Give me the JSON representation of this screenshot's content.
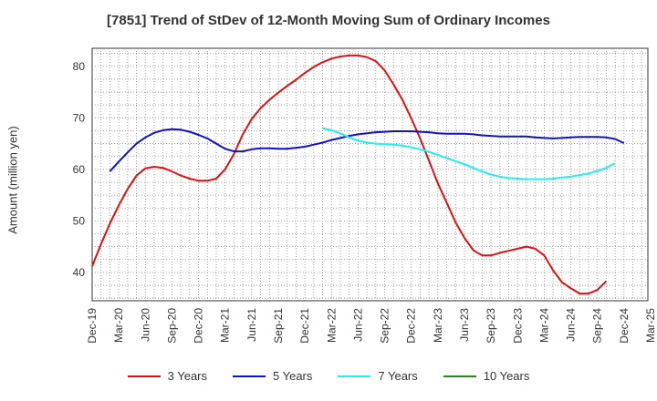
{
  "chart_data": {
    "type": "line",
    "title": "[7851]  Trend of StDev of 12-Month Moving Sum of Ordinary Incomes",
    "xlabel": "",
    "ylabel": "Amount (million yen)",
    "x_tick_labels": [
      "Dec-19",
      "Mar-20",
      "Jun-20",
      "Sep-20",
      "Dec-20",
      "Mar-21",
      "Jun-21",
      "Sep-21",
      "Dec-21",
      "Mar-22",
      "Jun-22",
      "Sep-22",
      "Dec-22",
      "Mar-23",
      "Jun-23",
      "Sep-23",
      "Dec-23",
      "Mar-24",
      "Jun-24",
      "Sep-24",
      "Dec-24",
      "Mar-25"
    ],
    "y_ticks": [
      40,
      50,
      60,
      70,
      80
    ],
    "ylim": [
      34.5,
      83.5
    ],
    "grid": true,
    "legend_position": "bottom",
    "series": [
      {
        "name": "3 Years",
        "color": "#dd1111",
        "start_month_index": 0,
        "values": [
          41.2,
          45.5,
          49.5,
          53.0,
          56.2,
          58.8,
          60.2,
          60.5,
          60.3,
          59.6,
          58.8,
          58.2,
          57.8,
          57.8,
          58.2,
          60.0,
          63.0,
          66.8,
          69.8,
          71.9,
          73.5,
          74.9,
          76.2,
          77.4,
          78.7,
          79.9,
          80.8,
          81.5,
          81.9,
          82.1,
          82.1,
          81.8,
          81.0,
          79.2,
          76.5,
          73.5,
          69.9,
          66.0,
          61.7,
          57.3,
          53.5,
          49.7,
          46.7,
          44.3,
          43.3,
          43.3,
          43.8,
          44.2,
          44.6,
          45.0,
          44.6,
          43.3,
          40.4,
          38.1,
          36.9,
          35.9,
          35.9,
          36.6,
          38.3
        ]
      },
      {
        "name": "5 Years",
        "color": "#1111cc",
        "start_month_index": 2,
        "values": [
          59.6,
          61.5,
          63.3,
          65.0,
          66.2,
          67.1,
          67.6,
          67.8,
          67.7,
          67.3,
          66.7,
          66.0,
          65.0,
          64.0,
          63.5,
          63.5,
          63.9,
          64.1,
          64.1,
          64.0,
          64.0,
          64.2,
          64.4,
          64.8,
          65.2,
          65.7,
          66.1,
          66.5,
          66.8,
          67.0,
          67.2,
          67.3,
          67.4,
          67.4,
          67.4,
          67.3,
          67.2,
          67.0,
          66.9,
          66.9,
          66.9,
          66.8,
          66.6,
          66.5,
          66.4,
          66.4,
          66.4,
          66.4,
          66.2,
          66.1,
          66.0,
          66.1,
          66.2,
          66.3,
          66.3,
          66.3,
          66.2,
          65.9,
          65.1
        ]
      },
      {
        "name": "7 Years",
        "color": "#22eeee",
        "start_month_index": 26,
        "values": [
          68.0,
          67.6,
          67.0,
          66.2,
          65.6,
          65.2,
          65.0,
          64.9,
          64.8,
          64.6,
          64.3,
          63.9,
          63.4,
          62.8,
          62.2,
          61.6,
          61.0,
          60.3,
          59.6,
          59.0,
          58.6,
          58.3,
          58.2,
          58.1,
          58.1,
          58.1,
          58.2,
          58.4,
          58.6,
          58.9,
          59.2,
          59.7,
          60.3,
          61.2
        ]
      },
      {
        "name": "10 Years",
        "color": "#228822",
        "start_month_index": 0,
        "values": []
      }
    ]
  }
}
